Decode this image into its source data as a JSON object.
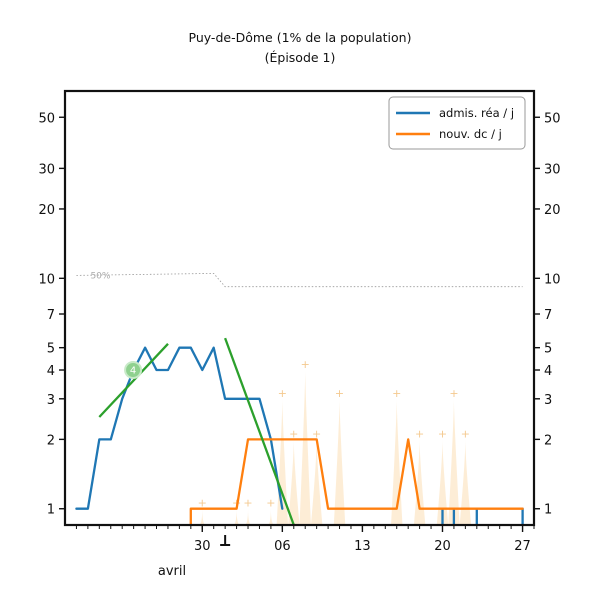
{
  "chart_data": {
    "type": "line",
    "title": "Puy-de-Dôme (1% de la population)",
    "subtitle": "(Épisode 1)",
    "yscale": "log",
    "ylim": [
      0.85,
      65
    ],
    "yticks": [
      1,
      2,
      3,
      4,
      5,
      7,
      10,
      20,
      30,
      50
    ],
    "xlim": [
      "2020-03-18",
      "2020-04-28"
    ],
    "xticks": [
      {
        "label": "30",
        "date": "2020-03-30"
      },
      {
        "label": "06",
        "date": "2020-04-06"
      },
      {
        "label": "13",
        "date": "2020-04-13"
      },
      {
        "label": "20",
        "date": "2020-04-20"
      },
      {
        "label": "27",
        "date": "2020-04-27"
      }
    ],
    "month_label": "avril",
    "legend_position": "upper right",
    "reference_label": "50%",
    "reference_line": [
      {
        "x": "2020-03-19",
        "y": 10.3
      },
      {
        "x": "2020-03-31",
        "y": 10.5
      },
      {
        "x": "2020-04-01",
        "y": 9.2
      },
      {
        "x": "2020-04-27",
        "y": 9.2
      }
    ],
    "series": [
      {
        "name": "admis. réa / j",
        "color": "#1f77b4",
        "segments": [
          [
            {
              "x": "2020-03-19",
              "y": 1
            },
            {
              "x": "2020-03-20",
              "y": 1
            },
            {
              "x": "2020-03-21",
              "y": 2
            },
            {
              "x": "2020-03-22",
              "y": 2
            },
            {
              "x": "2020-03-23",
              "y": 3
            },
            {
              "x": "2020-03-24",
              "y": 4
            },
            {
              "x": "2020-03-25",
              "y": 5
            },
            {
              "x": "2020-03-26",
              "y": 4
            },
            {
              "x": "2020-03-27",
              "y": 4
            },
            {
              "x": "2020-03-28",
              "y": 5
            },
            {
              "x": "2020-03-29",
              "y": 5
            },
            {
              "x": "2020-03-30",
              "y": 4
            },
            {
              "x": "2020-03-31",
              "y": 5
            },
            {
              "x": "2020-04-01",
              "y": 3
            },
            {
              "x": "2020-04-02",
              "y": 3
            },
            {
              "x": "2020-04-03",
              "y": 3
            },
            {
              "x": "2020-04-04",
              "y": 3
            },
            {
              "x": "2020-04-05",
              "y": 2
            },
            {
              "x": "2020-04-06",
              "y": 1
            }
          ],
          [
            {
              "x": "2020-04-20",
              "y": 1
            },
            {
              "x": "2020-04-20",
              "y": 0.85
            }
          ],
          [
            {
              "x": "2020-04-21",
              "y": 1
            },
            {
              "x": "2020-04-21",
              "y": 0.85
            }
          ],
          [
            {
              "x": "2020-04-23",
              "y": 1
            },
            {
              "x": "2020-04-23",
              "y": 0.85
            }
          ],
          [
            {
              "x": "2020-04-27",
              "y": 1
            },
            {
              "x": "2020-04-27",
              "y": 0.85
            }
          ]
        ]
      },
      {
        "name": "nouv. dc / j",
        "color": "#ff7f0e",
        "segments": [
          [
            {
              "x": "2020-03-29",
              "y": 0.85
            },
            {
              "x": "2020-03-29",
              "y": 1
            },
            {
              "x": "2020-04-02",
              "y": 1
            },
            {
              "x": "2020-04-03",
              "y": 2
            },
            {
              "x": "2020-04-05",
              "y": 2
            },
            {
              "x": "2020-04-07",
              "y": 2
            },
            {
              "x": "2020-04-09",
              "y": 2
            },
            {
              "x": "2020-04-10",
              "y": 1
            },
            {
              "x": "2020-04-15",
              "y": 1
            },
            {
              "x": "2020-04-16",
              "y": 1
            },
            {
              "x": "2020-04-17",
              "y": 2
            },
            {
              "x": "2020-04-18",
              "y": 1
            },
            {
              "x": "2020-04-20",
              "y": 1
            },
            {
              "x": "2020-04-21",
              "y": 1
            },
            {
              "x": "2020-04-22",
              "y": 1
            },
            {
              "x": "2020-04-27",
              "y": 1
            }
          ]
        ]
      }
    ],
    "trend_lines": [
      {
        "color": "#2ca02c",
        "points": [
          {
            "x": "2020-03-21",
            "y": 2.5
          },
          {
            "x": "2020-03-27",
            "y": 5.2
          }
        ]
      },
      {
        "color": "#2ca02c",
        "points": [
          {
            "x": "2020-04-01",
            "y": 5.5
          },
          {
            "x": "2020-04-07",
            "y": 0.85
          }
        ]
      }
    ],
    "marker": {
      "label": "4",
      "x": "2020-03-25",
      "y": 4
    },
    "daily_deaths_bars": {
      "color": "#fce8cc",
      "points": [
        {
          "x": "2020-03-30",
          "y": 1
        },
        {
          "x": "2020-04-02",
          "y": 1
        },
        {
          "x": "2020-04-03",
          "y": 1
        },
        {
          "x": "2020-04-05",
          "y": 1
        },
        {
          "x": "2020-04-06",
          "y": 3
        },
        {
          "x": "2020-04-07",
          "y": 2
        },
        {
          "x": "2020-04-08",
          "y": 4
        },
        {
          "x": "2020-04-09",
          "y": 2
        },
        {
          "x": "2020-04-11",
          "y": 3
        },
        {
          "x": "2020-04-16",
          "y": 3
        },
        {
          "x": "2020-04-18",
          "y": 2
        },
        {
          "x": "2020-04-20",
          "y": 2
        },
        {
          "x": "2020-04-21",
          "y": 3
        },
        {
          "x": "2020-04-22",
          "y": 2
        }
      ]
    }
  }
}
